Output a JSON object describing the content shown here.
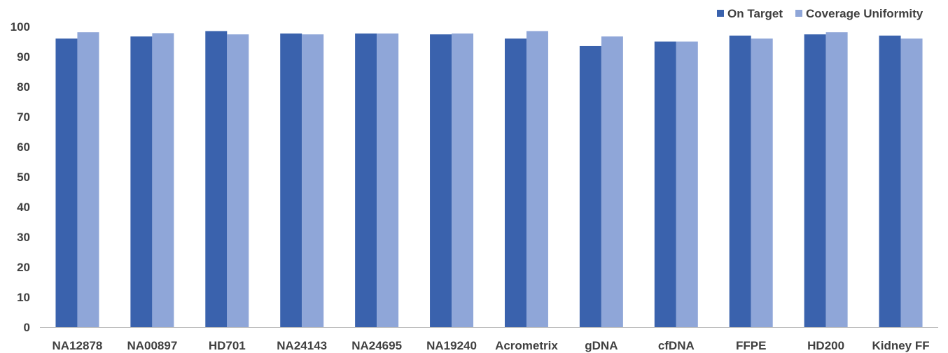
{
  "chart_data": {
    "type": "bar",
    "categories": [
      "NA12878",
      "NA00897",
      "HD701",
      "NA24143",
      "NA24695",
      "NA19240",
      "Acrometrix",
      "gDNA",
      "cfDNA",
      "FFPE",
      "HD200",
      "Kidney FF"
    ],
    "series": [
      {
        "name": "On Target",
        "color": "#3a62ad",
        "values": [
          96,
          96.7,
          98.5,
          97.7,
          97.7,
          97.4,
          96,
          93.5,
          95,
          97,
          97.4,
          97
        ]
      },
      {
        "name": "Coverage Uniformity",
        "color": "#8fa6d8",
        "values": [
          98.1,
          97.8,
          97.4,
          97.4,
          97.7,
          97.7,
          98.5,
          96.7,
          95,
          96,
          98.1,
          96
        ]
      }
    ],
    "title": "",
    "xlabel": "",
    "ylabel": "",
    "ylim": [
      0,
      100
    ],
    "yticks": [
      "0",
      "10",
      "20",
      "30",
      "40",
      "50",
      "60",
      "70",
      "80",
      "90",
      "100"
    ],
    "grid": false,
    "legend_position": "top-right"
  }
}
